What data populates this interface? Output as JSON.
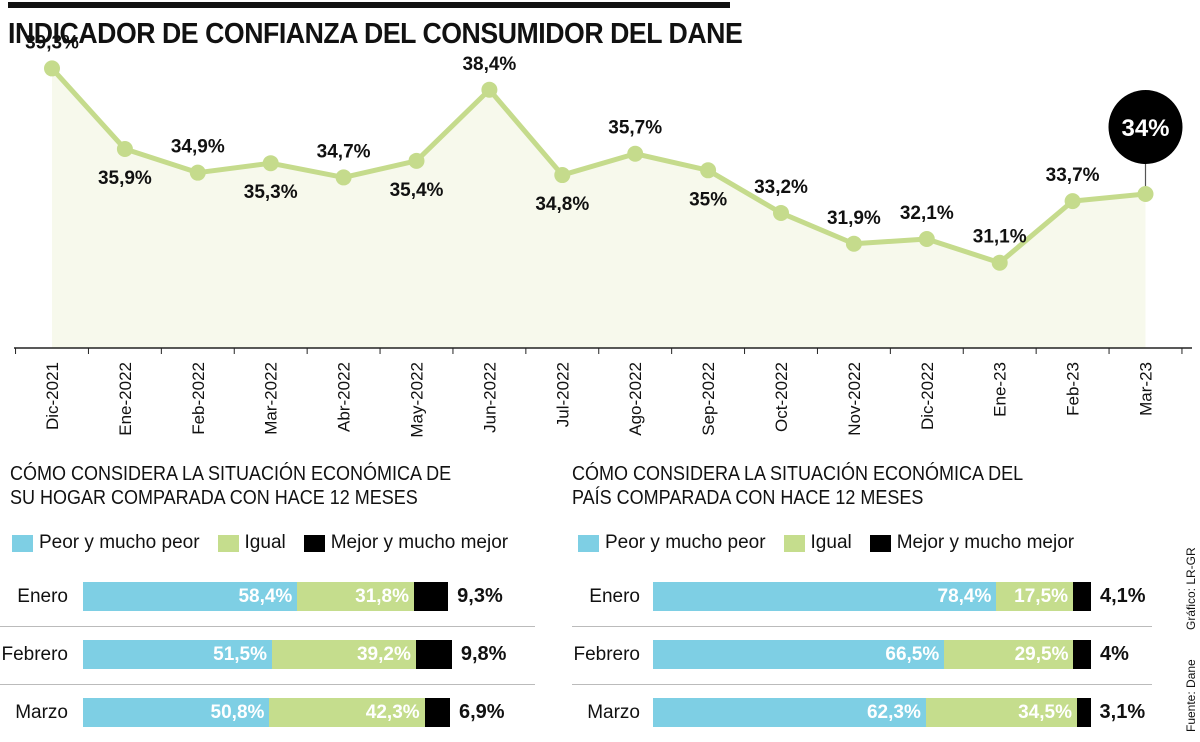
{
  "title": "INDICADOR DE CONFIANZA DEL CONSUMIDOR DEL DANE",
  "colors": {
    "line": "#c5db8c",
    "area": "#f7f9ec",
    "peor": "#7ecfe4",
    "igual": "#c5dd8d",
    "mejor": "#000000",
    "callout": "#000000"
  },
  "chart_data": [
    {
      "type": "line",
      "title": "INDICADOR DE CONFIANZA DEL CONSUMIDOR DEL DANE",
      "categories": [
        "Dic-2021",
        "Ene-2022",
        "Feb-2022",
        "Mar-2022",
        "Abr-2022",
        "May-2022",
        "Jun-2022",
        "Jul-2022",
        "Ago-2022",
        "Sep-2022",
        "Oct-2022",
        "Nov-2022",
        "Dic-2022",
        "Ene-23",
        "Feb-23",
        "Mar-23"
      ],
      "values": [
        39.3,
        35.9,
        34.9,
        35.3,
        34.7,
        35.4,
        38.4,
        34.8,
        35.7,
        35.0,
        33.2,
        31.9,
        32.1,
        31.1,
        33.7,
        34.0
      ],
      "value_labels": [
        "39,3%",
        "35,9%",
        "34,9%",
        "35,3%",
        "34,7%",
        "35,4%",
        "38,4%",
        "34,8%",
        "35,7%",
        "35%",
        "33,2%",
        "31,9%",
        "32,1%",
        "31,1%",
        "33,7%",
        "34%"
      ],
      "label_position": [
        "above",
        "below",
        "above",
        "below",
        "above",
        "below",
        "above",
        "below",
        "above",
        "below",
        "above",
        "above",
        "above",
        "above",
        "above",
        "callout"
      ],
      "ylim": [
        27.5,
        40.5
      ],
      "xlabel": "",
      "ylabel": ""
    },
    {
      "type": "bar",
      "stacked": true,
      "orientation": "horizontal",
      "title": "CÓMO CONSIDERA LA SITUACIÓN ECONÓMICA DE\nSU HOGAR COMPARADA CON HACE 12 MESES",
      "categories": [
        "Enero",
        "Febrero",
        "Marzo"
      ],
      "series": [
        {
          "name": "Peor y mucho peor",
          "values": [
            58.4,
            51.5,
            50.8
          ],
          "labels": [
            "58,4%",
            "51,5%",
            "50,8%"
          ]
        },
        {
          "name": "Igual",
          "values": [
            31.8,
            39.2,
            42.3
          ],
          "labels": [
            "31,8%",
            "39,2%",
            "42,3%"
          ]
        },
        {
          "name": "Mejor y mucho mejor",
          "values": [
            9.3,
            9.8,
            6.9
          ],
          "labels": [
            "9,3%",
            "9,8%",
            "6,9%"
          ]
        }
      ]
    },
    {
      "type": "bar",
      "stacked": true,
      "orientation": "horizontal",
      "title": "CÓMO CONSIDERA LA SITUACIÓN ECONÓMICA DEL\nPAÍS COMPARADA CON HACE 12 MESES",
      "categories": [
        "Enero",
        "Febrero",
        "Marzo"
      ],
      "series": [
        {
          "name": "Peor y mucho peor",
          "values": [
            78.4,
            66.5,
            62.3
          ],
          "labels": [
            "78,4%",
            "66,5%",
            "62,3%"
          ]
        },
        {
          "name": "Igual",
          "values": [
            17.5,
            29.5,
            34.5
          ],
          "labels": [
            "17,5%",
            "29,5%",
            "34,5%"
          ]
        },
        {
          "name": "Mejor y mucho mejor",
          "values": [
            4.1,
            4.0,
            3.1
          ],
          "labels": [
            "4,1%",
            "4%",
            "3,1%"
          ]
        }
      ]
    }
  ],
  "credits": {
    "source": "Fuente: Dane",
    "graphic": "Gráfico: LR-GR"
  }
}
